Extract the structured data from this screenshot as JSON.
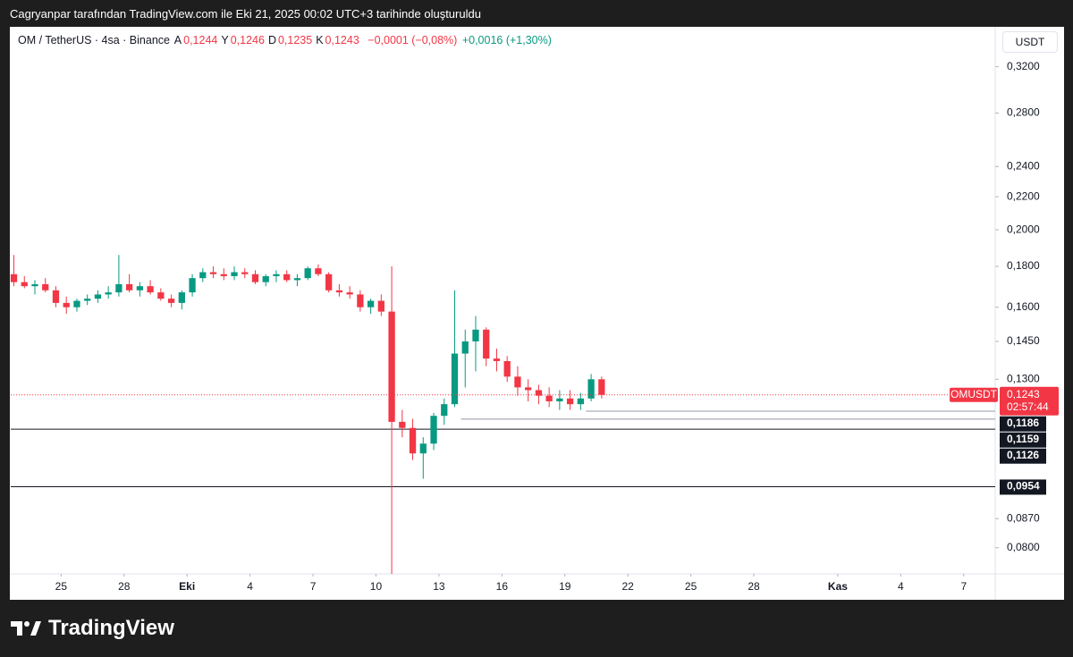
{
  "header": {
    "attribution": "Cagryanpar tarafından TradingView.com ile Eki 21, 2025 00:02 UTC+3 tarihinde oluşturuldu"
  },
  "chart_data": {
    "type": "candlestick",
    "symbol": "OM / TetherUS · 4sa · Binance",
    "ohlc_legend": [
      {
        "label": "A",
        "value": "0,1244"
      },
      {
        "label": "Y",
        "value": "0,1246"
      },
      {
        "label": "D",
        "value": "0,1235"
      },
      {
        "label": "K",
        "value": "0,1243"
      }
    ],
    "change": "−0,0001 (−0,08%)",
    "change_2": "+0,0016 (+1,30%)",
    "currency": "USDT",
    "x": [
      -2.25,
      -1.75,
      -1.25,
      -0.75,
      -0.25,
      0.25,
      0.75,
      1.25,
      1.75,
      2.25,
      2.75,
      3.25,
      3.75,
      4.25,
      4.75,
      5.25,
      5.75,
      6.25,
      6.75,
      7.25,
      7.75,
      8.25,
      8.75,
      9.25,
      9.75,
      10.25,
      10.75,
      11.25,
      11.75,
      12.25,
      12.75,
      13.25,
      13.75,
      14.25,
      14.75,
      15.25,
      15.75,
      16.25,
      16.75,
      17.25,
      17.75,
      18.25,
      18.75,
      19.25,
      19.75,
      20.25,
      20.75,
      21.25,
      21.75,
      22.25,
      22.75,
      23.25,
      23.75,
      24.25,
      24.75,
      25.25,
      25.75
    ],
    "open": [
      0.176,
      0.172,
      0.17,
      0.171,
      0.168,
      0.162,
      0.16,
      0.163,
      0.164,
      0.166,
      0.167,
      0.171,
      0.168,
      0.17,
      0.167,
      0.164,
      0.162,
      0.167,
      0.174,
      0.177,
      0.176,
      0.175,
      0.177,
      0.176,
      0.172,
      0.175,
      0.176,
      0.173,
      0.174,
      0.179,
      0.176,
      0.168,
      0.167,
      0.166,
      0.16,
      0.163,
      0.158,
      0.115,
      0.113,
      0.105,
      0.108,
      0.117,
      0.121,
      0.14,
      0.145,
      0.15,
      0.138,
      0.137,
      0.131,
      0.127,
      0.126,
      0.124,
      0.122,
      0.123,
      0.121,
      0.123,
      0.13
    ],
    "high": [
      0.186,
      0.175,
      0.173,
      0.174,
      0.17,
      0.165,
      0.164,
      0.166,
      0.168,
      0.17,
      0.186,
      0.176,
      0.172,
      0.173,
      0.169,
      0.166,
      0.168,
      0.176,
      0.179,
      0.18,
      0.179,
      0.18,
      0.179,
      0.178,
      0.176,
      0.178,
      0.178,
      0.176,
      0.18,
      0.181,
      0.177,
      0.171,
      0.17,
      0.168,
      0.164,
      0.166,
      0.18,
      0.119,
      0.116,
      0.11,
      0.118,
      0.123,
      0.168,
      0.15,
      0.156,
      0.151,
      0.142,
      0.139,
      0.135,
      0.13,
      0.128,
      0.127,
      0.126,
      0.126,
      0.125,
      0.132,
      0.131
    ],
    "low": [
      0.17,
      0.169,
      0.166,
      0.167,
      0.16,
      0.157,
      0.158,
      0.161,
      0.162,
      0.164,
      0.165,
      0.167,
      0.165,
      0.166,
      0.163,
      0.16,
      0.159,
      0.165,
      0.172,
      0.174,
      0.173,
      0.173,
      0.174,
      0.171,
      0.17,
      0.172,
      0.172,
      0.17,
      0.173,
      0.175,
      0.167,
      0.165,
      0.164,
      0.158,
      0.157,
      0.156,
      0.0742,
      0.11,
      0.103,
      0.0976,
      0.106,
      0.114,
      0.12,
      0.127,
      0.133,
      0.135,
      0.133,
      0.129,
      0.124,
      0.122,
      0.121,
      0.12,
      0.119,
      0.119,
      0.119,
      0.122,
      0.123
    ],
    "close": [
      0.172,
      0.17,
      0.171,
      0.168,
      0.162,
      0.16,
      0.163,
      0.164,
      0.166,
      0.167,
      0.171,
      0.168,
      0.17,
      0.167,
      0.164,
      0.162,
      0.167,
      0.174,
      0.177,
      0.176,
      0.175,
      0.177,
      0.176,
      0.172,
      0.175,
      0.176,
      0.173,
      0.174,
      0.179,
      0.176,
      0.168,
      0.167,
      0.166,
      0.16,
      0.163,
      0.158,
      0.115,
      0.113,
      0.105,
      0.108,
      0.117,
      0.121,
      0.14,
      0.145,
      0.15,
      0.138,
      0.137,
      0.131,
      0.127,
      0.126,
      0.124,
      0.122,
      0.123,
      0.121,
      0.123,
      0.13,
      0.1243
    ],
    "up_color": "#089981",
    "down_color": "#f23645",
    "xlim": [
      -2.4,
      44.5
    ],
    "xticks": [
      {
        "value": 0,
        "label": "25"
      },
      {
        "value": 3,
        "label": "28"
      },
      {
        "value": 6,
        "label": "Eki"
      },
      {
        "value": 9,
        "label": "4"
      },
      {
        "value": 12,
        "label": "7"
      },
      {
        "value": 15,
        "label": "10"
      },
      {
        "value": 18,
        "label": "13"
      },
      {
        "value": 21,
        "label": "16"
      },
      {
        "value": 24,
        "label": "19"
      },
      {
        "value": 27,
        "label": "22"
      },
      {
        "value": 30,
        "label": "25"
      },
      {
        "value": 33,
        "label": "28"
      },
      {
        "value": 37,
        "label": "Kas"
      },
      {
        "value": 40,
        "label": "4"
      },
      {
        "value": 43,
        "label": "7"
      }
    ],
    "ylim": [
      0.0742,
      0.359
    ],
    "log_scale": true,
    "grid": false,
    "yticks": [
      {
        "value": 0.32,
        "label": "0,3200"
      },
      {
        "value": 0.28,
        "label": "0,2800"
      },
      {
        "value": 0.24,
        "label": "0,2400"
      },
      {
        "value": 0.22,
        "label": "0,2200"
      },
      {
        "value": 0.2,
        "label": "0,2000"
      },
      {
        "value": 0.18,
        "label": "0,1800"
      },
      {
        "value": 0.16,
        "label": "0,1600"
      },
      {
        "value": 0.145,
        "label": "0,1450"
      },
      {
        "value": 0.13,
        "label": "0,1300"
      },
      {
        "value": 0.087,
        "label": "0,0870"
      },
      {
        "value": 0.08,
        "label": "0,0800"
      }
    ],
    "last_price": {
      "name": "OMUSDT",
      "value": 0.1243,
      "label": "0,1243",
      "countdown": "02:57:44",
      "color": "#f23645"
    },
    "levels": [
      {
        "value": 0.1186,
        "label": "0,1186",
        "x_start": 25.0,
        "color": "#9598a1"
      },
      {
        "value": 0.1159,
        "label": "0,1159",
        "x_start": 19.05,
        "color": "#9598a1"
      },
      {
        "value": 0.1126,
        "label": "0,1126",
        "color": "#131722"
      },
      {
        "value": 0.0954,
        "label": "0,0954",
        "color": "#131722"
      }
    ]
  },
  "footer": {
    "logo": "TradingView"
  }
}
